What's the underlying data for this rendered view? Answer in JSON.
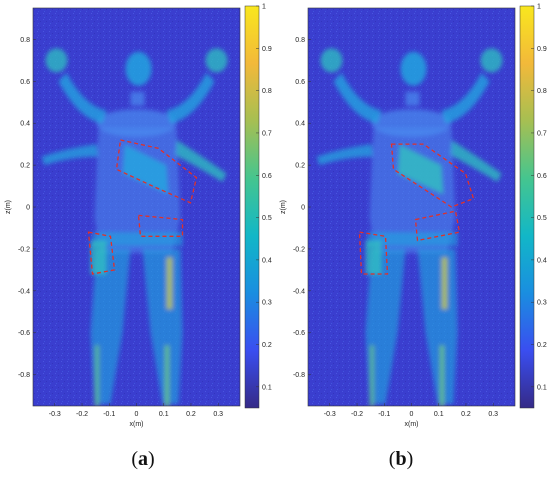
{
  "colors": {
    "background_field": "#3a3ecf",
    "colormap": [
      "#352a87",
      "#3a4ef0",
      "#1a8ee0",
      "#12b7c7",
      "#45c58f",
      "#a6bf52",
      "#f2b93a",
      "#f9e71e"
    ]
  },
  "axes": {
    "xlabel": "x(m)",
    "ylabel": "z(m)",
    "x_ticks": [
      "-0.3",
      "-0.2",
      "-0.1",
      "0",
      "0.1",
      "0.2",
      "0.3"
    ],
    "y_ticks": [
      "0.8",
      "0.6",
      "0.4",
      "0.2",
      "0",
      "-0.2",
      "-0.4",
      "-0.6",
      "-0.8"
    ],
    "x_range": [
      -0.38,
      0.38
    ],
    "y_range": [
      -0.95,
      0.95
    ]
  },
  "colorbar": {
    "ticks": [
      "1",
      "0.9",
      "0.8",
      "0.7",
      "0.6",
      "0.5",
      "0.4",
      "0.3",
      "0.2",
      "0.1"
    ],
    "range": [
      0.05,
      1
    ]
  },
  "panels": [
    {
      "id": "a",
      "caption_letter": "a",
      "caption_open": "(",
      "caption_close": ")"
    },
    {
      "id": "b",
      "caption_letter": "b",
      "caption_open": "(",
      "caption_close": ")"
    }
  ],
  "icons": {
    "outline": "red-dashed-outline"
  }
}
